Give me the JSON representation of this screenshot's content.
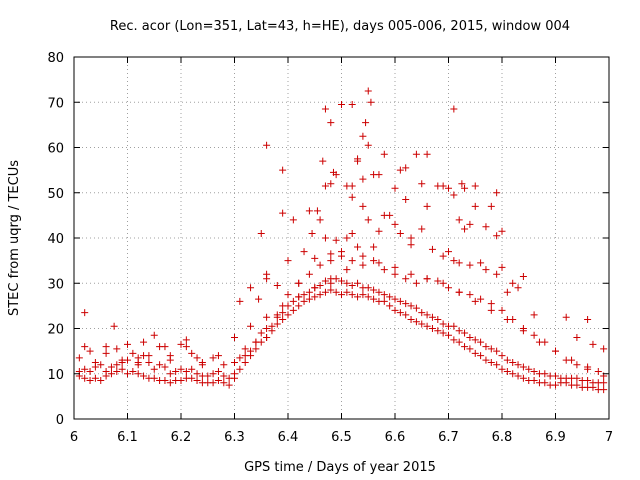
{
  "chart_data": {
    "type": "scatter",
    "title": "Rec. acor (Lon=351, Lat=43, h=HE), days 005-006, 2015, window 004",
    "xlabel": "GPS time / Days of year 2015",
    "ylabel": "STEC from uqrg / TECUs",
    "xlim": [
      6,
      7
    ],
    "ylim": [
      0,
      80
    ],
    "xticks": [
      "6",
      "6.1",
      "6.2",
      "6.3",
      "6.4",
      "6.5",
      "6.6",
      "6.7",
      "6.8",
      "6.9",
      "7"
    ],
    "yticks": [
      "0",
      "10",
      "20",
      "30",
      "40",
      "50",
      "60",
      "70",
      "80"
    ],
    "grid": true,
    "marker": "+",
    "color": "#cc0000",
    "series": [
      {
        "name": "STEC",
        "x": [
          6.01,
          6.01,
          6.02,
          6.03,
          6.04,
          6.05,
          6.06,
          6.07,
          6.08,
          6.09,
          6.1,
          6.11,
          6.12,
          6.13,
          6.14,
          6.15,
          6.16,
          6.17,
          6.18,
          6.19,
          6.2,
          6.21,
          6.22,
          6.23,
          6.24,
          6.25,
          6.26,
          6.27,
          6.28,
          6.29,
          6.3,
          6.31,
          6.32,
          6.33,
          6.34,
          6.35,
          6.36,
          6.37,
          6.38,
          6.39,
          6.4,
          6.41,
          6.42,
          6.43,
          6.44,
          6.45,
          6.46,
          6.47,
          6.48,
          6.49,
          6.5,
          6.51,
          6.52,
          6.53,
          6.54,
          6.55,
          6.56,
          6.57,
          6.58,
          6.59,
          6.6,
          6.61,
          6.62,
          6.63,
          6.64,
          6.65,
          6.66,
          6.67,
          6.68,
          6.69,
          6.7,
          6.71,
          6.72,
          6.73,
          6.74,
          6.75,
          6.76,
          6.77,
          6.78,
          6.79,
          6.8,
          6.81,
          6.82,
          6.83,
          6.84,
          6.85,
          6.86,
          6.87,
          6.88,
          6.89,
          6.9,
          6.91,
          6.92,
          6.93,
          6.94,
          6.95,
          6.96,
          6.97,
          6.98,
          6.99,
          6.01,
          6.02,
          6.03,
          6.04,
          6.05,
          6.06,
          6.07,
          6.08,
          6.09,
          6.1,
          6.11,
          6.12,
          6.13,
          6.14,
          6.15,
          6.16,
          6.17,
          6.18,
          6.19,
          6.2,
          6.21,
          6.22,
          6.23,
          6.24,
          6.25,
          6.26,
          6.27,
          6.28,
          6.29,
          6.3,
          6.31,
          6.32,
          6.33,
          6.34,
          6.35,
          6.36,
          6.37,
          6.38,
          6.39,
          6.4,
          6.41,
          6.42,
          6.43,
          6.44,
          6.45,
          6.46,
          6.47,
          6.48,
          6.49,
          6.5,
          6.51,
          6.52,
          6.53,
          6.54,
          6.55,
          6.56,
          6.57,
          6.58,
          6.59,
          6.6,
          6.61,
          6.62,
          6.63,
          6.64,
          6.65,
          6.66,
          6.67,
          6.68,
          6.69,
          6.7,
          6.71,
          6.72,
          6.73,
          6.74,
          6.75,
          6.76,
          6.77,
          6.78,
          6.79,
          6.8,
          6.81,
          6.82,
          6.83,
          6.84,
          6.85,
          6.86,
          6.87,
          6.88,
          6.89,
          6.9,
          6.91,
          6.92,
          6.93,
          6.94,
          6.95,
          6.96,
          6.97,
          6.98,
          6.99,
          6.02,
          6.04,
          6.06,
          6.08,
          6.1,
          6.12,
          6.14,
          6.16,
          6.18,
          6.2,
          6.22,
          6.24,
          6.26,
          6.28,
          6.3,
          6.32,
          6.34,
          6.36,
          6.38,
          6.4,
          6.42,
          6.44,
          6.46,
          6.48,
          6.5,
          6.52,
          6.54,
          6.56,
          6.58,
          6.6,
          6.62,
          6.64,
          6.66,
          6.68,
          6.7,
          6.72,
          6.74,
          6.76,
          6.78,
          6.8,
          6.82,
          6.84,
          6.86,
          6.88,
          6.9,
          6.92,
          6.94,
          6.96,
          6.98,
          6.03,
          6.06,
          6.09,
          6.12,
          6.15,
          6.18,
          6.21,
          6.24,
          6.27,
          6.3,
          6.33,
          6.36,
          6.39,
          6.42,
          6.45,
          6.48,
          6.51,
          6.54,
          6.57,
          6.6,
          6.63,
          6.66,
          6.69,
          6.72,
          6.75,
          6.78,
          6.81,
          6.84,
          6.87,
          6.9,
          6.93,
          6.96,
          6.99,
          6.35,
          6.36,
          6.38,
          6.4,
          6.43,
          6.45,
          6.46,
          6.47,
          6.48,
          6.49,
          6.5,
          6.51,
          6.52,
          6.53,
          6.54,
          6.55,
          6.56,
          6.57,
          6.58,
          6.6,
          6.61,
          6.63,
          6.65,
          6.67,
          6.69,
          6.7,
          6.71,
          6.72,
          6.74,
          6.76,
          6.77,
          6.79,
          6.8,
          6.82,
          6.47,
          6.48,
          6.49,
          6.51,
          6.52,
          6.53,
          6.54,
          6.55,
          6.56,
          6.57,
          6.6,
          6.65,
          6.69,
          6.71,
          6.72,
          6.74,
          6.75,
          6.78,
          6.79,
          6.62,
          6.66,
          6.63,
          6.73,
          6.36,
          6.39,
          6.41,
          6.44,
          6.48,
          6.5,
          6.52,
          6.55,
          6.58,
          6.62,
          6.64,
          6.68,
          6.71,
          6.73,
          6.77,
          6.8,
          6.83,
          6.86,
          6.92,
          6.94,
          6.97
        ],
        "y": [
          9.5,
          10.5,
          9.0,
          8.5,
          9.0,
          8.5,
          9.5,
          10.0,
          10.5,
          11.0,
          10.0,
          10.5,
          10.0,
          9.5,
          9.0,
          9.0,
          8.5,
          8.5,
          8.0,
          8.5,
          8.5,
          9.0,
          9.0,
          8.5,
          8.0,
          8.0,
          8.0,
          8.5,
          8.0,
          7.5,
          9.0,
          11.0,
          12.5,
          14.0,
          15.5,
          17.0,
          18.0,
          19.5,
          21.0,
          22.0,
          23.0,
          24.0,
          25.0,
          26.0,
          26.5,
          27.0,
          27.5,
          28.0,
          28.5,
          28.0,
          27.5,
          28.0,
          27.5,
          27.0,
          27.5,
          27.0,
          26.5,
          26.0,
          26.0,
          25.0,
          24.0,
          23.5,
          23.0,
          22.0,
          21.5,
          21.0,
          20.5,
          20.0,
          19.5,
          19.0,
          18.5,
          17.5,
          17.0,
          16.0,
          15.5,
          14.5,
          14.0,
          13.0,
          12.5,
          12.0,
          11.0,
          10.5,
          10.0,
          9.5,
          9.0,
          8.5,
          8.5,
          8.0,
          8.0,
          7.5,
          7.5,
          8.0,
          8.0,
          7.5,
          7.5,
          7.0,
          7.0,
          7.0,
          6.5,
          6.5,
          13.5,
          11.0,
          10.5,
          11.5,
          12.0,
          10.5,
          11.5,
          12.0,
          12.5,
          13.0,
          14.5,
          13.5,
          14.0,
          12.5,
          11.0,
          12.0,
          11.5,
          10.0,
          10.5,
          11.0,
          10.5,
          11.0,
          10.0,
          9.5,
          9.5,
          10.0,
          10.5,
          9.5,
          9.0,
          10.0,
          13.5,
          14.0,
          15.0,
          17.0,
          19.0,
          20.0,
          20.5,
          22.5,
          23.5,
          25.0,
          26.0,
          27.0,
          27.5,
          28.0,
          29.0,
          29.5,
          30.5,
          30.0,
          31.0,
          30.5,
          30.0,
          29.5,
          30.0,
          29.0,
          29.0,
          28.5,
          28.0,
          27.5,
          27.0,
          26.5,
          26.0,
          25.5,
          25.0,
          24.5,
          23.5,
          23.0,
          22.5,
          22.0,
          21.0,
          20.5,
          20.5,
          19.5,
          19.0,
          18.0,
          17.5,
          17.0,
          16.0,
          15.5,
          15.0,
          14.0,
          13.0,
          12.5,
          12.0,
          11.5,
          11.0,
          10.5,
          10.0,
          10.0,
          9.5,
          9.5,
          9.0,
          9.0,
          9.0,
          9.0,
          8.5,
          8.5,
          8.0,
          8.0,
          8.0,
          16.0,
          12.5,
          14.5,
          15.5,
          16.5,
          12.0,
          14.0,
          16.0,
          14.0,
          16.5,
          14.5,
          12.0,
          13.5,
          12.0,
          12.5,
          15.5,
          17.0,
          18.0,
          23.0,
          27.5,
          30.0,
          32.0,
          34.0,
          35.0,
          36.0,
          35.0,
          36.0,
          35.0,
          33.0,
          32.0,
          31.0,
          30.0,
          31.0,
          30.5,
          29.0,
          28.0,
          27.5,
          26.5,
          25.5,
          24.0,
          22.0,
          20.0,
          18.5,
          17.0,
          15.0,
          13.0,
          12.0,
          11.5,
          10.5,
          15.0,
          16.0,
          13.0,
          12.5,
          18.5,
          13.0,
          16.0,
          12.5,
          14.0,
          18.0,
          20.5,
          22.5,
          25.0,
          27.0,
          29.0,
          31.0,
          33.0,
          34.0,
          34.5,
          33.5,
          32.0,
          31.0,
          30.0,
          28.0,
          26.0,
          24.0,
          22.0,
          19.5,
          17.0,
          15.0,
          13.0,
          11.0,
          9.5,
          41.0,
          31.0,
          29.5,
          35.0,
          37.0,
          35.5,
          44.0,
          40.0,
          36.5,
          39.5,
          37.0,
          40.0,
          41.0,
          38.0,
          47.0,
          44.0,
          38.0,
          41.5,
          45.0,
          43.0,
          41.0,
          40.0,
          42.0,
          37.5,
          36.0,
          37.0,
          35.0,
          34.5,
          34.0,
          34.5,
          33.0,
          32.0,
          33.5,
          30.0,
          51.5,
          52.0,
          54.0,
          51.5,
          51.5,
          57.0,
          53.0,
          60.5,
          54.0,
          54.0,
          51.0,
          52.0,
          51.5,
          49.5,
          44.0,
          43.0,
          51.5,
          47.0,
          40.5,
          48.5,
          47.0,
          38.5,
          42.0,
          32.0,
          45.5,
          44.0,
          46.0,
          65.5,
          69.5,
          49.0,
          72.5,
          58.5,
          55.5,
          58.5,
          51.5,
          68.5,
          51.0,
          42.5,
          41.5,
          29.0,
          23.0,
          22.5,
          18.0,
          16.5
        ]
      },
      {
        "name": "STEC",
        "x": [
          6.02,
          6.13,
          6.36,
          6.39,
          6.47,
          6.52,
          6.54,
          6.555,
          6.545,
          6.59,
          6.61,
          6.66,
          6.725,
          6.7,
          6.75,
          6.79,
          6.81,
          6.84,
          6.96,
          6.99,
          6.075,
          6.17,
          6.21,
          6.23,
          6.31,
          6.33,
          6.345,
          6.42,
          6.445,
          6.455,
          6.465,
          6.485,
          6.53
        ],
        "y": [
          23.5,
          17.0,
          60.5,
          55.0,
          68.5,
          69.5,
          62.5,
          70.0,
          65.5,
          45.0,
          55.0,
          58.5,
          52.0,
          51.0,
          47.0,
          50.0,
          28.0,
          31.5,
          22.0,
          15.5,
          20.5,
          16.0,
          17.5,
          13.5,
          26.0,
          29.0,
          26.5,
          30.0,
          41.0,
          46.0,
          57.0,
          54.5,
          57.5
        ]
      }
    ]
  }
}
